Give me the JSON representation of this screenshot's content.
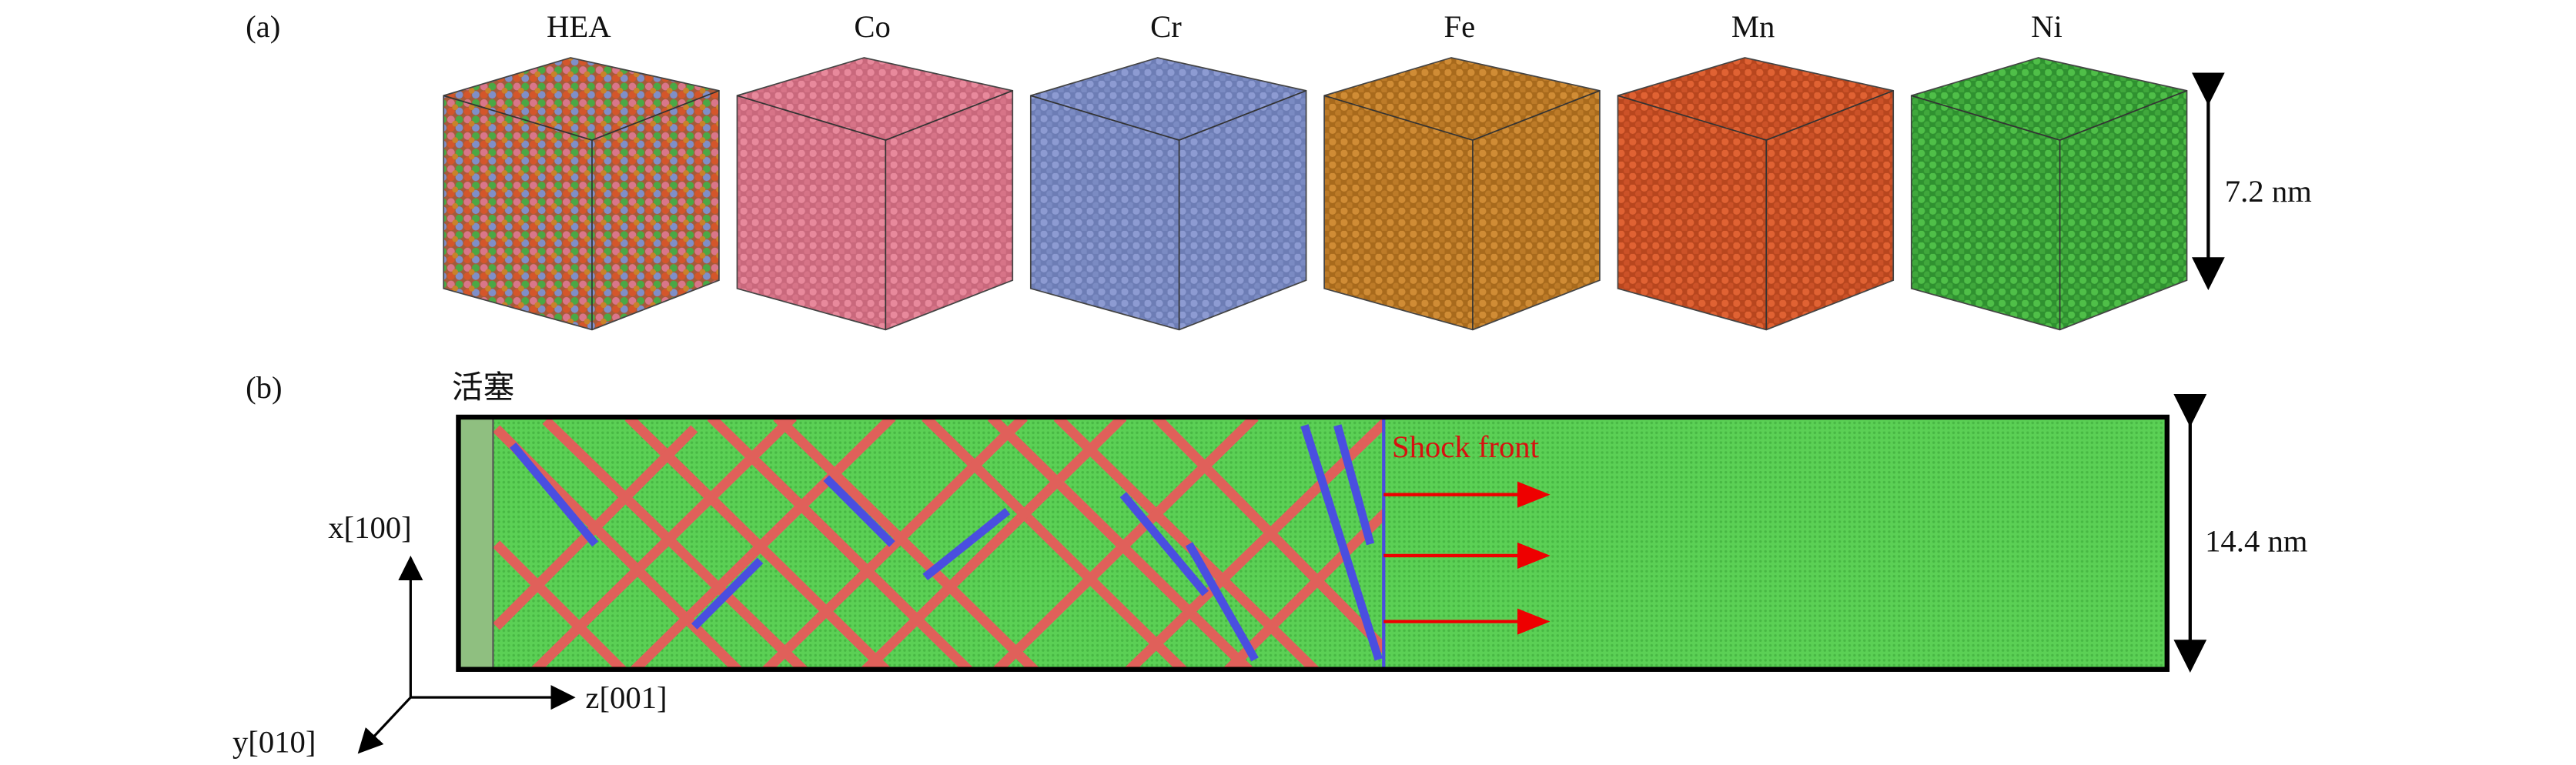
{
  "panel_a": {
    "label": "(a)",
    "elements": [
      "HEA",
      "Co",
      "Cr",
      "Fe",
      "Mn",
      "Ni"
    ],
    "dimension": "7.2 nm"
  },
  "panel_b": {
    "label": "(b)",
    "piston": "活塞",
    "shock_front": "Shock front",
    "dimension": "14.4 nm"
  },
  "axes": {
    "x": "x[100]",
    "z": "z[001]",
    "y": "y[010]"
  }
}
